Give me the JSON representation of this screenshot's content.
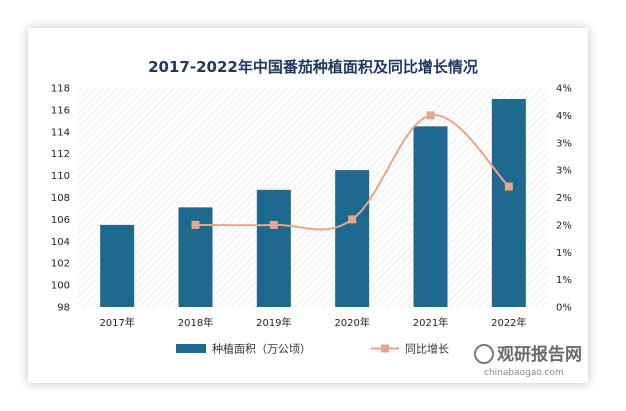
{
  "chart_data": {
    "type": "bar",
    "title": "2017-2022年中国番茄种植面积及同比增长情况",
    "categories": [
      "2017年",
      "2018年",
      "2019年",
      "2020年",
      "2021年",
      "2022年"
    ],
    "series": [
      {
        "name": "种植面积（万公顷）",
        "type": "bar",
        "axis": "left",
        "color": "#1d6a8e",
        "values": [
          105.5,
          107.1,
          108.7,
          110.5,
          114.5,
          117.0
        ]
      },
      {
        "name": "同比增长",
        "type": "line",
        "axis": "right",
        "color": "#e8a589",
        "values": [
          null,
          1.5,
          1.5,
          1.6,
          3.5,
          2.2
        ]
      }
    ],
    "y_left": {
      "range": [
        98,
        118
      ],
      "ticks": [
        "98",
        "100",
        "102",
        "104",
        "106",
        "108",
        "110",
        "112",
        "114",
        "116",
        "118"
      ]
    },
    "y_right": {
      "range": [
        0,
        4
      ],
      "ticks": [
        "0%",
        "1%",
        "1%",
        "2%",
        "2%",
        "3%",
        "3%",
        "4%",
        "4%"
      ]
    },
    "grid": false,
    "legend": "bottom"
  },
  "watermark": {
    "cn": "观研报告网",
    "en": "chinabaogao.com"
  }
}
